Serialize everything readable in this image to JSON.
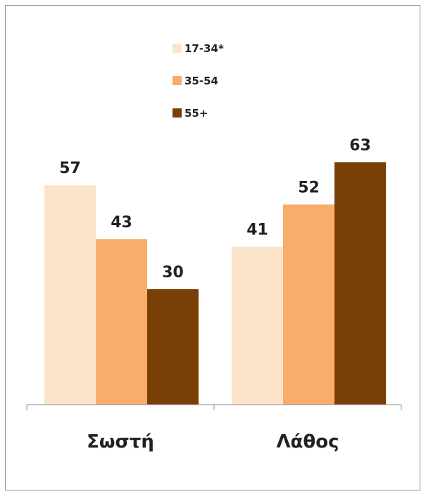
{
  "chart_data": {
    "type": "bar",
    "categories": [
      "Σωστή",
      "Λάθος"
    ],
    "series": [
      {
        "name": "17-34*",
        "values": [
          57,
          41
        ],
        "color": "#FCE4CC"
      },
      {
        "name": "35-54",
        "values": [
          43,
          52
        ],
        "color": "#F8AE6A"
      },
      {
        "name": "55+",
        "values": [
          30,
          63
        ],
        "color": "#7A3E07"
      }
    ],
    "title": "",
    "xlabel": "",
    "ylabel": "",
    "ylim": [
      0,
      70
    ],
    "grid": false,
    "legend": "top-center",
    "data_labels": true,
    "axis_color": "#8c8c8c"
  }
}
